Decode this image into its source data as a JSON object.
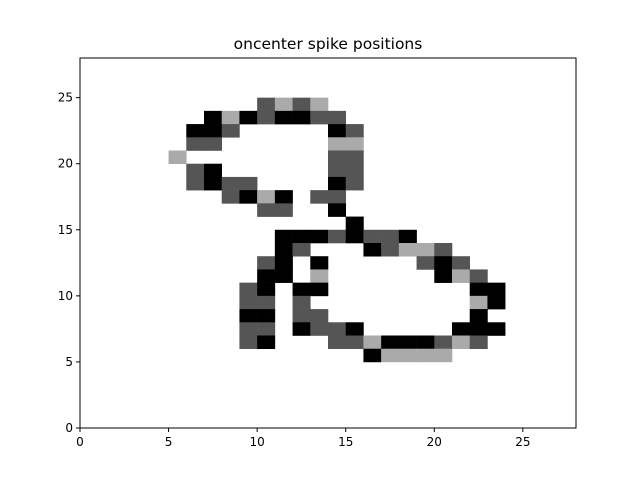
{
  "chart_data": {
    "type": "heatmap",
    "title": "oncenter spike positions",
    "xlabel": "",
    "ylabel": "",
    "xlim": [
      0,
      28
    ],
    "ylim": [
      0,
      28
    ],
    "x_ticks": [
      0,
      5,
      10,
      15,
      20,
      25
    ],
    "y_ticks": [
      0,
      5,
      10,
      15,
      20,
      25
    ],
    "grid": false,
    "legend": "none",
    "cell_colors": {
      "black": "#000000",
      "dark": "#555555",
      "light": "#aaaaaa"
    },
    "cells": [
      {
        "x": 10,
        "y": 24,
        "c": "dark"
      },
      {
        "x": 11,
        "y": 24,
        "c": "light"
      },
      {
        "x": 12,
        "y": 24,
        "c": "dark"
      },
      {
        "x": 13,
        "y": 24,
        "c": "light"
      },
      {
        "x": 7,
        "y": 23,
        "c": "black"
      },
      {
        "x": 8,
        "y": 23,
        "c": "light"
      },
      {
        "x": 9,
        "y": 23,
        "c": "black"
      },
      {
        "x": 10,
        "y": 23,
        "c": "dark"
      },
      {
        "x": 11,
        "y": 23,
        "c": "black"
      },
      {
        "x": 12,
        "y": 23,
        "c": "black"
      },
      {
        "x": 13,
        "y": 23,
        "c": "dark"
      },
      {
        "x": 14,
        "y": 23,
        "c": "dark"
      },
      {
        "x": 6,
        "y": 22,
        "c": "black"
      },
      {
        "x": 7,
        "y": 22,
        "c": "black"
      },
      {
        "x": 8,
        "y": 22,
        "c": "dark"
      },
      {
        "x": 14,
        "y": 22,
        "c": "black"
      },
      {
        "x": 15,
        "y": 22,
        "c": "dark"
      },
      {
        "x": 6,
        "y": 21,
        "c": "dark"
      },
      {
        "x": 7,
        "y": 21,
        "c": "dark"
      },
      {
        "x": 14,
        "y": 21,
        "c": "light"
      },
      {
        "x": 15,
        "y": 21,
        "c": "light"
      },
      {
        "x": 5,
        "y": 20,
        "c": "light"
      },
      {
        "x": 14,
        "y": 20,
        "c": "dark"
      },
      {
        "x": 15,
        "y": 20,
        "c": "dark"
      },
      {
        "x": 6,
        "y": 19,
        "c": "dark"
      },
      {
        "x": 7,
        "y": 19,
        "c": "black"
      },
      {
        "x": 14,
        "y": 19,
        "c": "dark"
      },
      {
        "x": 15,
        "y": 19,
        "c": "dark"
      },
      {
        "x": 6,
        "y": 18,
        "c": "dark"
      },
      {
        "x": 7,
        "y": 18,
        "c": "black"
      },
      {
        "x": 8,
        "y": 18,
        "c": "dark"
      },
      {
        "x": 9,
        "y": 18,
        "c": "dark"
      },
      {
        "x": 14,
        "y": 18,
        "c": "black"
      },
      {
        "x": 15,
        "y": 18,
        "c": "dark"
      },
      {
        "x": 8,
        "y": 17,
        "c": "dark"
      },
      {
        "x": 9,
        "y": 17,
        "c": "black"
      },
      {
        "x": 10,
        "y": 17,
        "c": "light"
      },
      {
        "x": 11,
        "y": 17,
        "c": "black"
      },
      {
        "x": 13,
        "y": 17,
        "c": "dark"
      },
      {
        "x": 14,
        "y": 17,
        "c": "dark"
      },
      {
        "x": 10,
        "y": 16,
        "c": "dark"
      },
      {
        "x": 11,
        "y": 16,
        "c": "dark"
      },
      {
        "x": 14,
        "y": 16,
        "c": "black"
      },
      {
        "x": 15,
        "y": 15,
        "c": "black"
      },
      {
        "x": 11,
        "y": 14,
        "c": "black"
      },
      {
        "x": 12,
        "y": 14,
        "c": "black"
      },
      {
        "x": 13,
        "y": 14,
        "c": "black"
      },
      {
        "x": 14,
        "y": 14,
        "c": "dark"
      },
      {
        "x": 15,
        "y": 14,
        "c": "black"
      },
      {
        "x": 16,
        "y": 14,
        "c": "dark"
      },
      {
        "x": 17,
        "y": 14,
        "c": "dark"
      },
      {
        "x": 18,
        "y": 14,
        "c": "black"
      },
      {
        "x": 11,
        "y": 13,
        "c": "black"
      },
      {
        "x": 12,
        "y": 13,
        "c": "dark"
      },
      {
        "x": 16,
        "y": 13,
        "c": "black"
      },
      {
        "x": 17,
        "y": 13,
        "c": "dark"
      },
      {
        "x": 18,
        "y": 13,
        "c": "light"
      },
      {
        "x": 19,
        "y": 13,
        "c": "light"
      },
      {
        "x": 20,
        "y": 13,
        "c": "dark"
      },
      {
        "x": 10,
        "y": 12,
        "c": "dark"
      },
      {
        "x": 11,
        "y": 12,
        "c": "black"
      },
      {
        "x": 13,
        "y": 12,
        "c": "black"
      },
      {
        "x": 19,
        "y": 12,
        "c": "dark"
      },
      {
        "x": 20,
        "y": 12,
        "c": "black"
      },
      {
        "x": 21,
        "y": 12,
        "c": "dark"
      },
      {
        "x": 10,
        "y": 11,
        "c": "black"
      },
      {
        "x": 11,
        "y": 11,
        "c": "black"
      },
      {
        "x": 13,
        "y": 11,
        "c": "light"
      },
      {
        "x": 20,
        "y": 11,
        "c": "black"
      },
      {
        "x": 21,
        "y": 11,
        "c": "light"
      },
      {
        "x": 22,
        "y": 11,
        "c": "dark"
      },
      {
        "x": 9,
        "y": 10,
        "c": "dark"
      },
      {
        "x": 10,
        "y": 10,
        "c": "black"
      },
      {
        "x": 12,
        "y": 10,
        "c": "black"
      },
      {
        "x": 13,
        "y": 10,
        "c": "black"
      },
      {
        "x": 22,
        "y": 10,
        "c": "black"
      },
      {
        "x": 23,
        "y": 10,
        "c": "black"
      },
      {
        "x": 9,
        "y": 9,
        "c": "dark"
      },
      {
        "x": 10,
        "y": 9,
        "c": "dark"
      },
      {
        "x": 12,
        "y": 9,
        "c": "dark"
      },
      {
        "x": 22,
        "y": 9,
        "c": "light"
      },
      {
        "x": 23,
        "y": 9,
        "c": "black"
      },
      {
        "x": 9,
        "y": 8,
        "c": "black"
      },
      {
        "x": 10,
        "y": 8,
        "c": "black"
      },
      {
        "x": 12,
        "y": 8,
        "c": "dark"
      },
      {
        "x": 13,
        "y": 8,
        "c": "dark"
      },
      {
        "x": 22,
        "y": 8,
        "c": "black"
      },
      {
        "x": 9,
        "y": 7,
        "c": "dark"
      },
      {
        "x": 10,
        "y": 7,
        "c": "dark"
      },
      {
        "x": 12,
        "y": 7,
        "c": "black"
      },
      {
        "x": 13,
        "y": 7,
        "c": "dark"
      },
      {
        "x": 14,
        "y": 7,
        "c": "dark"
      },
      {
        "x": 15,
        "y": 7,
        "c": "black"
      },
      {
        "x": 21,
        "y": 7,
        "c": "black"
      },
      {
        "x": 22,
        "y": 7,
        "c": "black"
      },
      {
        "x": 23,
        "y": 7,
        "c": "black"
      },
      {
        "x": 9,
        "y": 6,
        "c": "dark"
      },
      {
        "x": 10,
        "y": 6,
        "c": "black"
      },
      {
        "x": 14,
        "y": 6,
        "c": "dark"
      },
      {
        "x": 15,
        "y": 6,
        "c": "dark"
      },
      {
        "x": 16,
        "y": 6,
        "c": "light"
      },
      {
        "x": 17,
        "y": 6,
        "c": "black"
      },
      {
        "x": 18,
        "y": 6,
        "c": "black"
      },
      {
        "x": 19,
        "y": 6,
        "c": "black"
      },
      {
        "x": 20,
        "y": 6,
        "c": "dark"
      },
      {
        "x": 21,
        "y": 6,
        "c": "light"
      },
      {
        "x": 22,
        "y": 6,
        "c": "dark"
      },
      {
        "x": 16,
        "y": 5,
        "c": "black"
      },
      {
        "x": 17,
        "y": 5,
        "c": "light"
      },
      {
        "x": 18,
        "y": 5,
        "c": "light"
      },
      {
        "x": 19,
        "y": 5,
        "c": "light"
      },
      {
        "x": 20,
        "y": 5,
        "c": "light"
      }
    ]
  }
}
